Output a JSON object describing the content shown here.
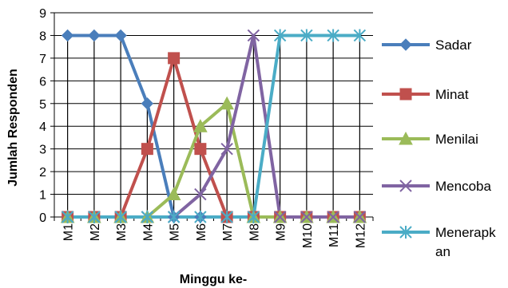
{
  "chart_data": {
    "type": "line",
    "categories": [
      "M1",
      "M2",
      "M3",
      "M4",
      "M5",
      "M6",
      "M7",
      "M8",
      "M9",
      "M10",
      "M11",
      "M12"
    ],
    "xlabel": "Minggu ke-",
    "ylabel": "Jumlah Responden",
    "ylim": [
      0,
      9
    ],
    "yticks": [
      0,
      1,
      2,
      3,
      4,
      5,
      6,
      7,
      8,
      9
    ],
    "grid": "horizontal major gridlines plus vertical drop lines",
    "legend_position": "right",
    "series": [
      {
        "name": "Sadar",
        "color": "#4a7ebb",
        "marker": "diamond",
        "values": [
          8,
          8,
          8,
          5,
          0,
          0,
          0,
          0,
          0,
          0,
          0,
          0
        ]
      },
      {
        "name": "Minat",
        "color": "#c0504d",
        "marker": "square",
        "values": [
          0,
          0,
          0,
          3,
          7,
          3,
          0,
          0,
          0,
          0,
          0,
          0
        ]
      },
      {
        "name": "Menilai",
        "color": "#9bbb59",
        "marker": "triangle",
        "values": [
          0,
          0,
          0,
          0,
          1,
          4,
          5,
          0,
          0,
          0,
          0,
          0
        ]
      },
      {
        "name": "Mencoba",
        "color": "#8064a2",
        "marker": "x",
        "values": [
          0,
          0,
          0,
          0,
          0,
          1,
          3,
          8,
          0,
          0,
          0,
          0
        ]
      },
      {
        "name": "Menerapkan",
        "color": "#4bacc6",
        "marker": "star",
        "values": [
          0,
          0,
          0,
          0,
          0,
          0,
          0,
          0,
          8,
          8,
          8,
          8
        ]
      }
    ]
  }
}
